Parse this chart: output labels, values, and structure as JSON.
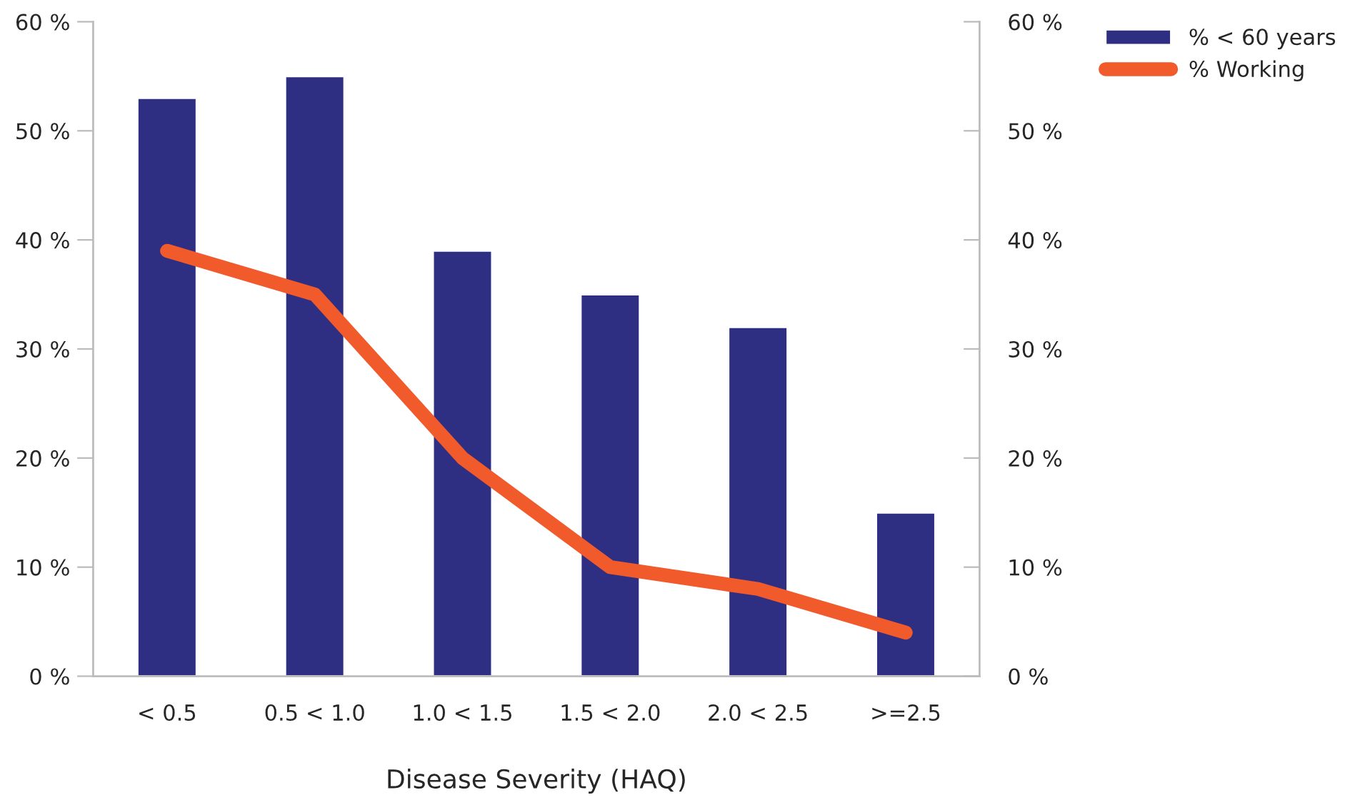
{
  "chart_data": {
    "type": "bar",
    "xlabel": "Disease Severity (HAQ)",
    "categories": [
      "< 0.5",
      "0.5 < 1.0",
      "1.0 < 1.5",
      "1.5 < 2.0",
      "2.0 < 2.5",
      ">=2.5"
    ],
    "series": [
      {
        "name": "% < 60 years",
        "color": "#2e2e82",
        "values": [
          53,
          55,
          39,
          35,
          32,
          15
        ]
      },
      {
        "name": "% Working",
        "type": "line",
        "axis": "y2",
        "color": "#f15a2b",
        "values": [
          39,
          35,
          20,
          10,
          8,
          4
        ]
      }
    ],
    "ylim": [
      0,
      60
    ],
    "yticks": [
      {
        "value": 0,
        "label": "0 %"
      },
      {
        "value": 10,
        "label": "10 %"
      },
      {
        "value": 20,
        "label": "20 %"
      },
      {
        "value": 30,
        "label": "30 %"
      },
      {
        "value": 40,
        "label": "40 %"
      },
      {
        "value": 50,
        "label": "50 %"
      },
      {
        "value": 60,
        "label": "60 %"
      }
    ],
    "y2lim": [
      0,
      60
    ],
    "y2ticks": [
      {
        "value": 0,
        "label": "0 %"
      },
      {
        "value": 10,
        "label": "10 %"
      },
      {
        "value": 20,
        "label": "20 %"
      },
      {
        "value": 30,
        "label": "30 %"
      },
      {
        "value": 40,
        "label": "40 %"
      },
      {
        "value": 50,
        "label": "50 %"
      },
      {
        "value": 60,
        "label": "60 %"
      }
    ],
    "grid": false,
    "legend": "top right",
    "marker": "none",
    "line_style": "solid"
  }
}
